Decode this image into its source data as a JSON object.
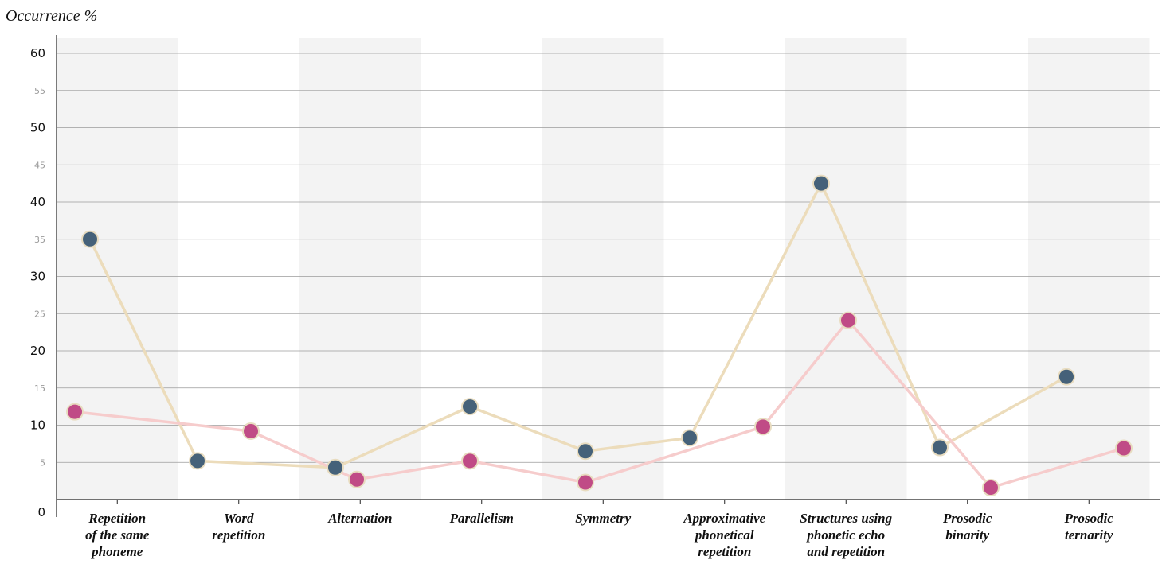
{
  "chart_data": {
    "type": "line",
    "ylabel": "Occurrence %",
    "ylim": [
      0,
      62
    ],
    "yticks_major": [
      0,
      10,
      20,
      30,
      40,
      50,
      60
    ],
    "yticks_minor": [
      5,
      15,
      25,
      35,
      45,
      55
    ],
    "categories": [
      [
        "Repetition",
        "of the same",
        "phoneme"
      ],
      [
        "Word",
        "repetition"
      ],
      [
        "Alternation"
      ],
      [
        "Parallelism"
      ],
      [
        "Symmetry"
      ],
      [
        "Approximative",
        "phonetical",
        "repetition"
      ],
      [
        "Structures using",
        "phonetic echo",
        "and repetition"
      ],
      [
        "Prosodic",
        "binarity"
      ],
      [
        "Prosodic",
        "ternarity"
      ]
    ],
    "series": [
      {
        "line_color": "#ecdcbb",
        "marker_color": "#456179",
        "values": [
          35.0,
          5.2,
          4.3,
          12.5,
          6.5,
          8.3,
          42.5,
          7.0,
          16.5
        ]
      },
      {
        "line_color": "#f6cccc",
        "marker_color": "#c04b86",
        "values": [
          11.8,
          9.2,
          2.7,
          5.2,
          2.3,
          9.8,
          24.1,
          1.6,
          6.9
        ]
      }
    ],
    "band_color": "#f3f3f3",
    "grid": true
  }
}
